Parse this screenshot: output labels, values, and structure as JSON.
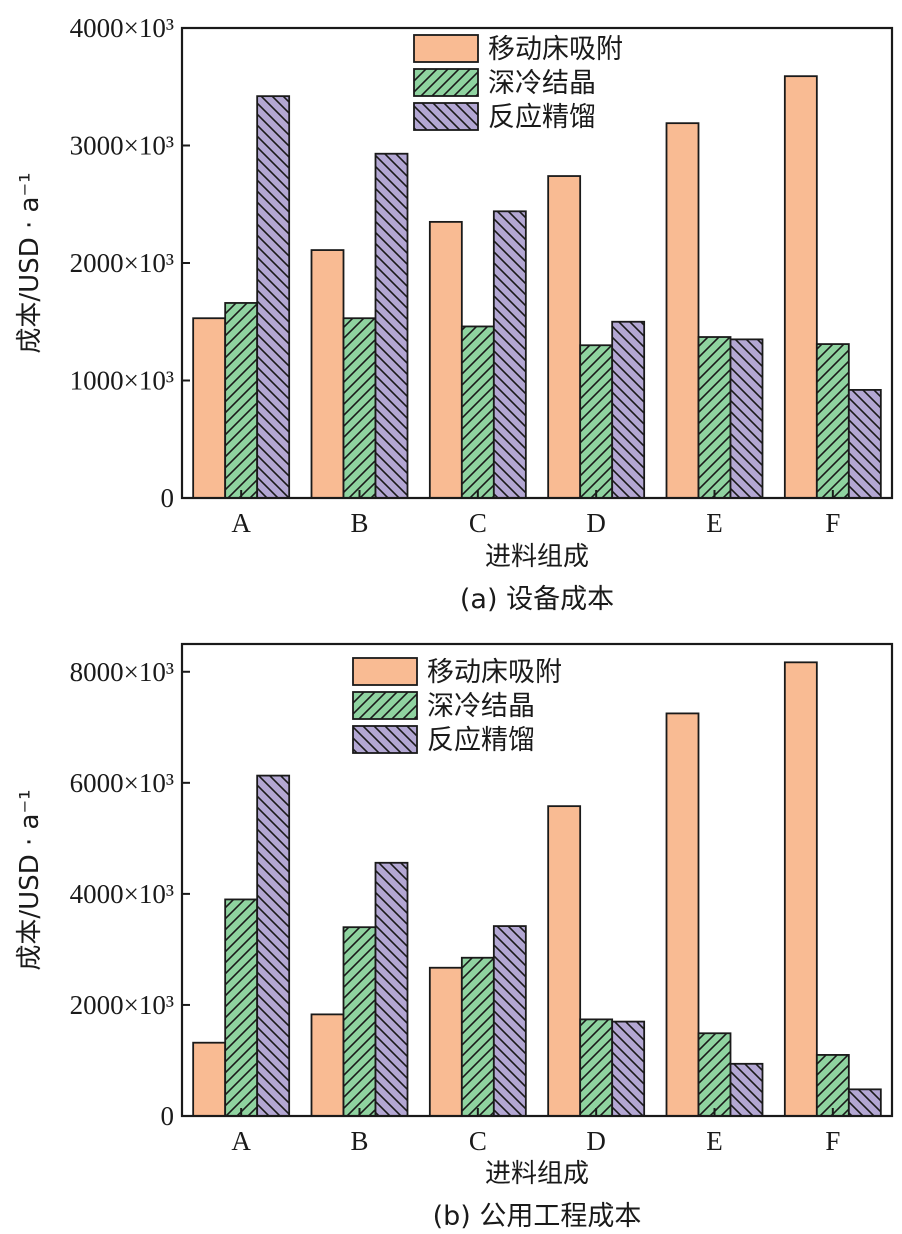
{
  "chart_data": [
    {
      "type": "bar",
      "caption": "(a) 设备成本",
      "xlabel": "进料组成",
      "ylabel": "成本/USD · a⁻¹",
      "categories": [
        "A",
        "B",
        "C",
        "D",
        "E",
        "F"
      ],
      "ylim": [
        0,
        4000
      ],
      "yticks": [
        0,
        1000,
        2000,
        3000,
        4000
      ],
      "ytick_labels": [
        "0",
        "1000×10³",
        "2000×10³",
        "3000×10³",
        "4000×10³"
      ],
      "legend_position": "top-center",
      "series": [
        {
          "name": "移动床吸附",
          "pattern": "solid",
          "color": "#f9bb93",
          "values": [
            1530,
            2110,
            2350,
            2740,
            3190,
            3590
          ]
        },
        {
          "name": "深冷结晶",
          "pattern": "hatch-forward",
          "color": "#8fd3a0",
          "values": [
            1660,
            1530,
            1460,
            1300,
            1370,
            1310
          ]
        },
        {
          "name": "反应精馏",
          "pattern": "hatch-back",
          "color": "#b3a7d3",
          "values": [
            3420,
            2930,
            2440,
            1500,
            1350,
            920
          ]
        }
      ]
    },
    {
      "type": "bar",
      "caption": "(b) 公用工程成本",
      "xlabel": "进料组成",
      "ylabel": "成本/USD · a⁻¹",
      "categories": [
        "A",
        "B",
        "C",
        "D",
        "E",
        "F"
      ],
      "ylim": [
        0,
        8500
      ],
      "yticks": [
        0,
        2000,
        4000,
        6000,
        8000
      ],
      "ytick_labels": [
        "0",
        "2000×10³",
        "4000×10³",
        "6000×10³",
        "8000×10³"
      ],
      "legend_position": "top-center",
      "series": [
        {
          "name": "移动床吸附",
          "pattern": "solid",
          "color": "#f9bb93",
          "values": [
            1320,
            1830,
            2670,
            5580,
            7250,
            8170
          ]
        },
        {
          "name": "深冷结晶",
          "pattern": "hatch-forward",
          "color": "#8fd3a0",
          "values": [
            3900,
            3400,
            2850,
            1740,
            1490,
            1100
          ]
        },
        {
          "name": "反应精馏",
          "pattern": "hatch-back",
          "color": "#b3a7d3",
          "values": [
            6130,
            4560,
            3420,
            1700,
            940,
            480
          ]
        }
      ]
    }
  ]
}
